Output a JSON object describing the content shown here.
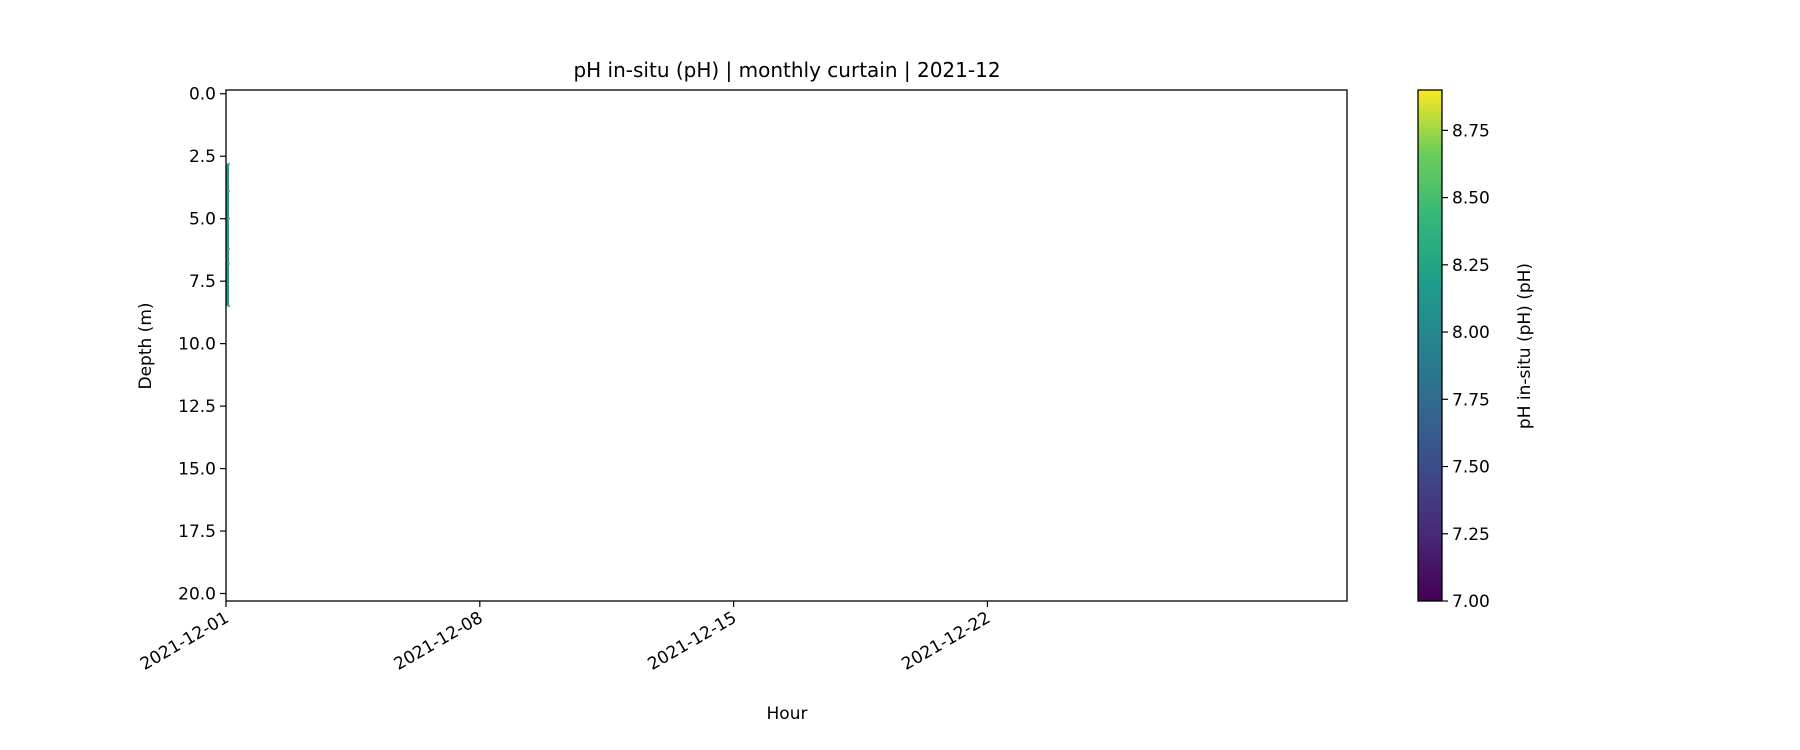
{
  "chart_data": {
    "type": "heatmap",
    "title": "pH in-situ (pH) | monthly curtain | 2021-12",
    "xlabel": "Hour",
    "ylabel": "Depth (m)",
    "xlim": [
      "2021-12-01T00:00",
      "2021-12-31T22:00"
    ],
    "ylim": [
      20.3,
      -0.15
    ],
    "y_inverted": true,
    "xticks": [
      "2021-12-01",
      "2021-12-08",
      "2021-12-15",
      "2021-12-22"
    ],
    "yticks": [
      "0.0",
      "2.5",
      "5.0",
      "7.5",
      "10.0",
      "12.5",
      "15.0",
      "17.5",
      "20.0"
    ],
    "grid": false,
    "colorbar": {
      "label": "pH in-situ (pH) (pH)",
      "colormap": "viridis",
      "range": [
        7.0,
        8.9
      ],
      "ticks": [
        "7.00",
        "7.25",
        "7.50",
        "7.75",
        "8.00",
        "8.25",
        "8.50",
        "8.75"
      ],
      "placement": "right"
    },
    "cells": [
      {
        "time": "2021-12-01T00:00",
        "depth_from": 2.8,
        "depth_to": 8.5,
        "value": 8.15
      }
    ],
    "sample_depths": [
      2.8,
      3.9,
      5.0,
      6.2,
      6.8,
      8.5
    ]
  }
}
